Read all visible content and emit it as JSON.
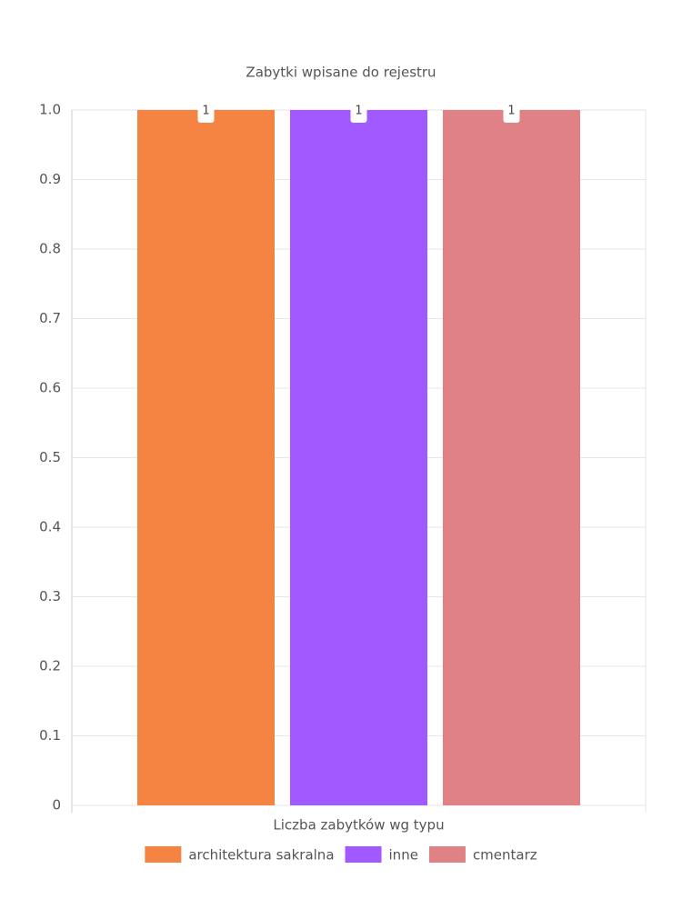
{
  "chart_data": {
    "type": "bar",
    "title": "Zabytki wpisane do rejestru",
    "categories": [
      "Liczba zabytków wg typu"
    ],
    "series": [
      {
        "name": "architektura sakralna",
        "color": "#f58442",
        "values": [
          1
        ]
      },
      {
        "name": "inne",
        "color": "#a05aff",
        "values": [
          1
        ]
      },
      {
        "name": "cmentarz",
        "color": "#e08285",
        "values": [
          1
        ]
      }
    ],
    "ylim": [
      0,
      1
    ],
    "yticks": [
      0,
      0.1,
      0.2,
      0.3,
      0.4,
      0.5,
      0.6,
      0.7,
      0.8,
      0.9,
      {
        "value": 1,
        "label": "1.0"
      }
    ],
    "grid": true
  }
}
